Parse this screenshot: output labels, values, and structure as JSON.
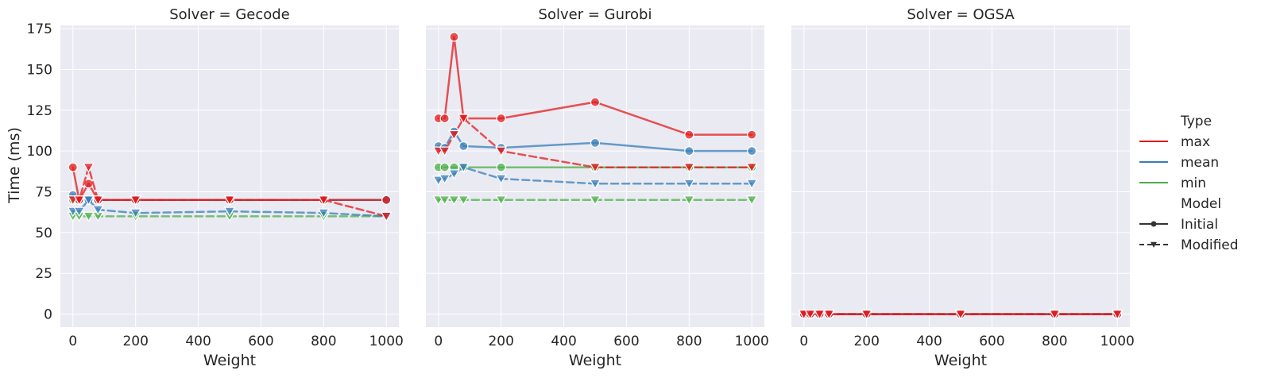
{
  "chart_data": {
    "type": "line",
    "ylabel": "Time (ms)",
    "xlabel": "Weight",
    "ylim": [
      -8,
      177
    ],
    "xlim": [
      -40,
      1040
    ],
    "yticks": [
      0,
      25,
      50,
      75,
      100,
      125,
      150,
      175
    ],
    "xticks": [
      0,
      200,
      400,
      600,
      800,
      1000
    ],
    "grid": true,
    "legend_position": "right",
    "colors": {
      "max": "#e41a1c",
      "mean": "#377eb8",
      "min": "#4daf4a"
    },
    "legend": {
      "title_type": "Type",
      "types": [
        "max",
        "mean",
        "min"
      ],
      "title_model": "Model",
      "models": [
        "Initial",
        "Modified"
      ]
    },
    "x": [
      0,
      20,
      50,
      80,
      200,
      500,
      800,
      1000
    ],
    "panels": [
      {
        "title": "Solver = Gecode",
        "series": [
          {
            "type": "max",
            "model": "Initial",
            "values": [
              90,
              70,
              80,
              70,
              70,
              70,
              70,
              70
            ]
          },
          {
            "type": "mean",
            "model": "Initial",
            "values": [
              73,
              70,
              70,
              70,
              70,
              70,
              70,
              70
            ]
          },
          {
            "type": "min",
            "model": "Initial",
            "values": [
              70,
              70,
              70,
              70,
              70,
              70,
              70,
              70
            ]
          },
          {
            "type": "max",
            "model": "Modified",
            "values": [
              70,
              70,
              90,
              70,
              70,
              70,
              70,
              60
            ]
          },
          {
            "type": "mean",
            "model": "Modified",
            "values": [
              63,
              63,
              70,
              64,
              62,
              63,
              62,
              60
            ]
          },
          {
            "type": "min",
            "model": "Modified",
            "values": [
              60,
              60,
              60,
              60,
              60,
              60,
              60,
              60
            ]
          }
        ]
      },
      {
        "title": "Solver = Gurobi",
        "series": [
          {
            "type": "max",
            "model": "Initial",
            "values": [
              120,
              120,
              170,
              120,
              120,
              130,
              110,
              110
            ]
          },
          {
            "type": "mean",
            "model": "Initial",
            "values": [
              103,
              102,
              112,
              103,
              102,
              105,
              100,
              100
            ]
          },
          {
            "type": "min",
            "model": "Initial",
            "values": [
              90,
              90,
              90,
              90,
              90,
              90,
              90,
              90
            ]
          },
          {
            "type": "max",
            "model": "Modified",
            "values": [
              100,
              100,
              110,
              120,
              100,
              90,
              90,
              90
            ]
          },
          {
            "type": "mean",
            "model": "Modified",
            "values": [
              82,
              83,
              86,
              90,
              83,
              80,
              80,
              80
            ]
          },
          {
            "type": "min",
            "model": "Modified",
            "values": [
              70,
              70,
              70,
              70,
              70,
              70,
              70,
              70
            ]
          }
        ]
      },
      {
        "title": "Solver = OGSA",
        "series": [
          {
            "type": "max",
            "model": "Initial",
            "values": [
              0,
              0,
              0,
              0,
              0,
              0,
              0,
              0
            ]
          },
          {
            "type": "mean",
            "model": "Initial",
            "values": [
              0,
              0,
              0,
              0,
              0,
              0,
              0,
              0
            ]
          },
          {
            "type": "min",
            "model": "Initial",
            "values": [
              0,
              0,
              0,
              0,
              0,
              0,
              0,
              0
            ]
          },
          {
            "type": "max",
            "model": "Modified",
            "values": [
              0,
              0,
              0,
              0,
              0,
              0,
              0,
              0
            ]
          },
          {
            "type": "mean",
            "model": "Modified",
            "values": [
              0,
              0,
              0,
              0,
              0,
              0,
              0,
              0
            ]
          },
          {
            "type": "min",
            "model": "Modified",
            "values": [
              0,
              0,
              0,
              0,
              0,
              0,
              0,
              0
            ]
          }
        ]
      }
    ]
  }
}
